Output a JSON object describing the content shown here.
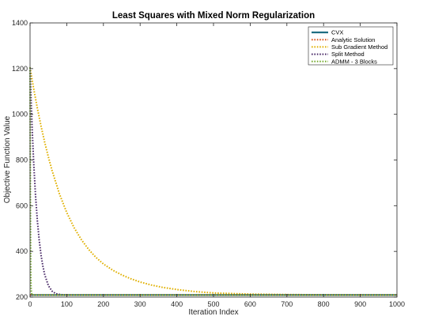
{
  "chart_data": {
    "type": "line",
    "title": "Least Squares with Mixed Norm Regularization",
    "xlabel": "Iteration Index",
    "ylabel": "Objective Function Value",
    "xlim": [
      0,
      1000
    ],
    "ylim": [
      200,
      1400
    ],
    "xticks": [
      "0",
      "100",
      "200",
      "300",
      "400",
      "500",
      "600",
      "700",
      "800",
      "900",
      "1000"
    ],
    "yticks": [
      "200",
      "400",
      "600",
      "800",
      "1000",
      "1200",
      "1400"
    ],
    "grid": false,
    "legend_position": "top-right",
    "series": [
      {
        "name": "CVX",
        "color": "#1f6e82",
        "style": "solid",
        "x": [
          0,
          1000
        ],
        "y": [
          209,
          209
        ]
      },
      {
        "name": "Analytic Solution",
        "color": "#d95319",
        "style": "dotted",
        "x": [
          0,
          1000
        ],
        "y": [
          209,
          209
        ]
      },
      {
        "name": "Sub Gradient Method",
        "color": "#e0b000",
        "style": "dotted",
        "x": [
          0,
          5,
          10,
          20,
          30,
          40,
          50,
          60,
          80,
          100,
          120,
          140,
          160,
          180,
          200,
          225,
          250,
          275,
          300,
          330,
          360,
          400,
          450,
          500,
          600,
          700,
          800,
          900,
          1000
        ],
        "y": [
          1205,
          1157,
          1111,
          1026,
          948,
          877,
          813,
          754,
          652,
          570,
          504,
          451,
          408,
          373,
          345,
          318,
          297,
          280,
          266,
          253,
          243,
          233,
          224,
          218,
          213,
          211,
          210,
          209,
          209
        ]
      },
      {
        "name": "Split Method",
        "color": "#4a2a68",
        "style": "dotted",
        "x": [
          0,
          3,
          6,
          10,
          15,
          20,
          25,
          30,
          35,
          40,
          50,
          60,
          70,
          80,
          90,
          100,
          120,
          150,
          200,
          300,
          500,
          1000
        ],
        "y": [
          1205,
          1056,
          929,
          785,
          643,
          533,
          448,
          384,
          335,
          298,
          250,
          226,
          215,
          212,
          210,
          209,
          209,
          209,
          209,
          209,
          209,
          209
        ]
      },
      {
        "name": "ADMM - 3 Blocks",
        "color": "#77ac30",
        "style": "dotted",
        "x": [
          0,
          1,
          2,
          3,
          5,
          10,
          1000
        ],
        "y": [
          1205,
          600,
          300,
          230,
          212,
          209,
          209
        ]
      }
    ]
  }
}
